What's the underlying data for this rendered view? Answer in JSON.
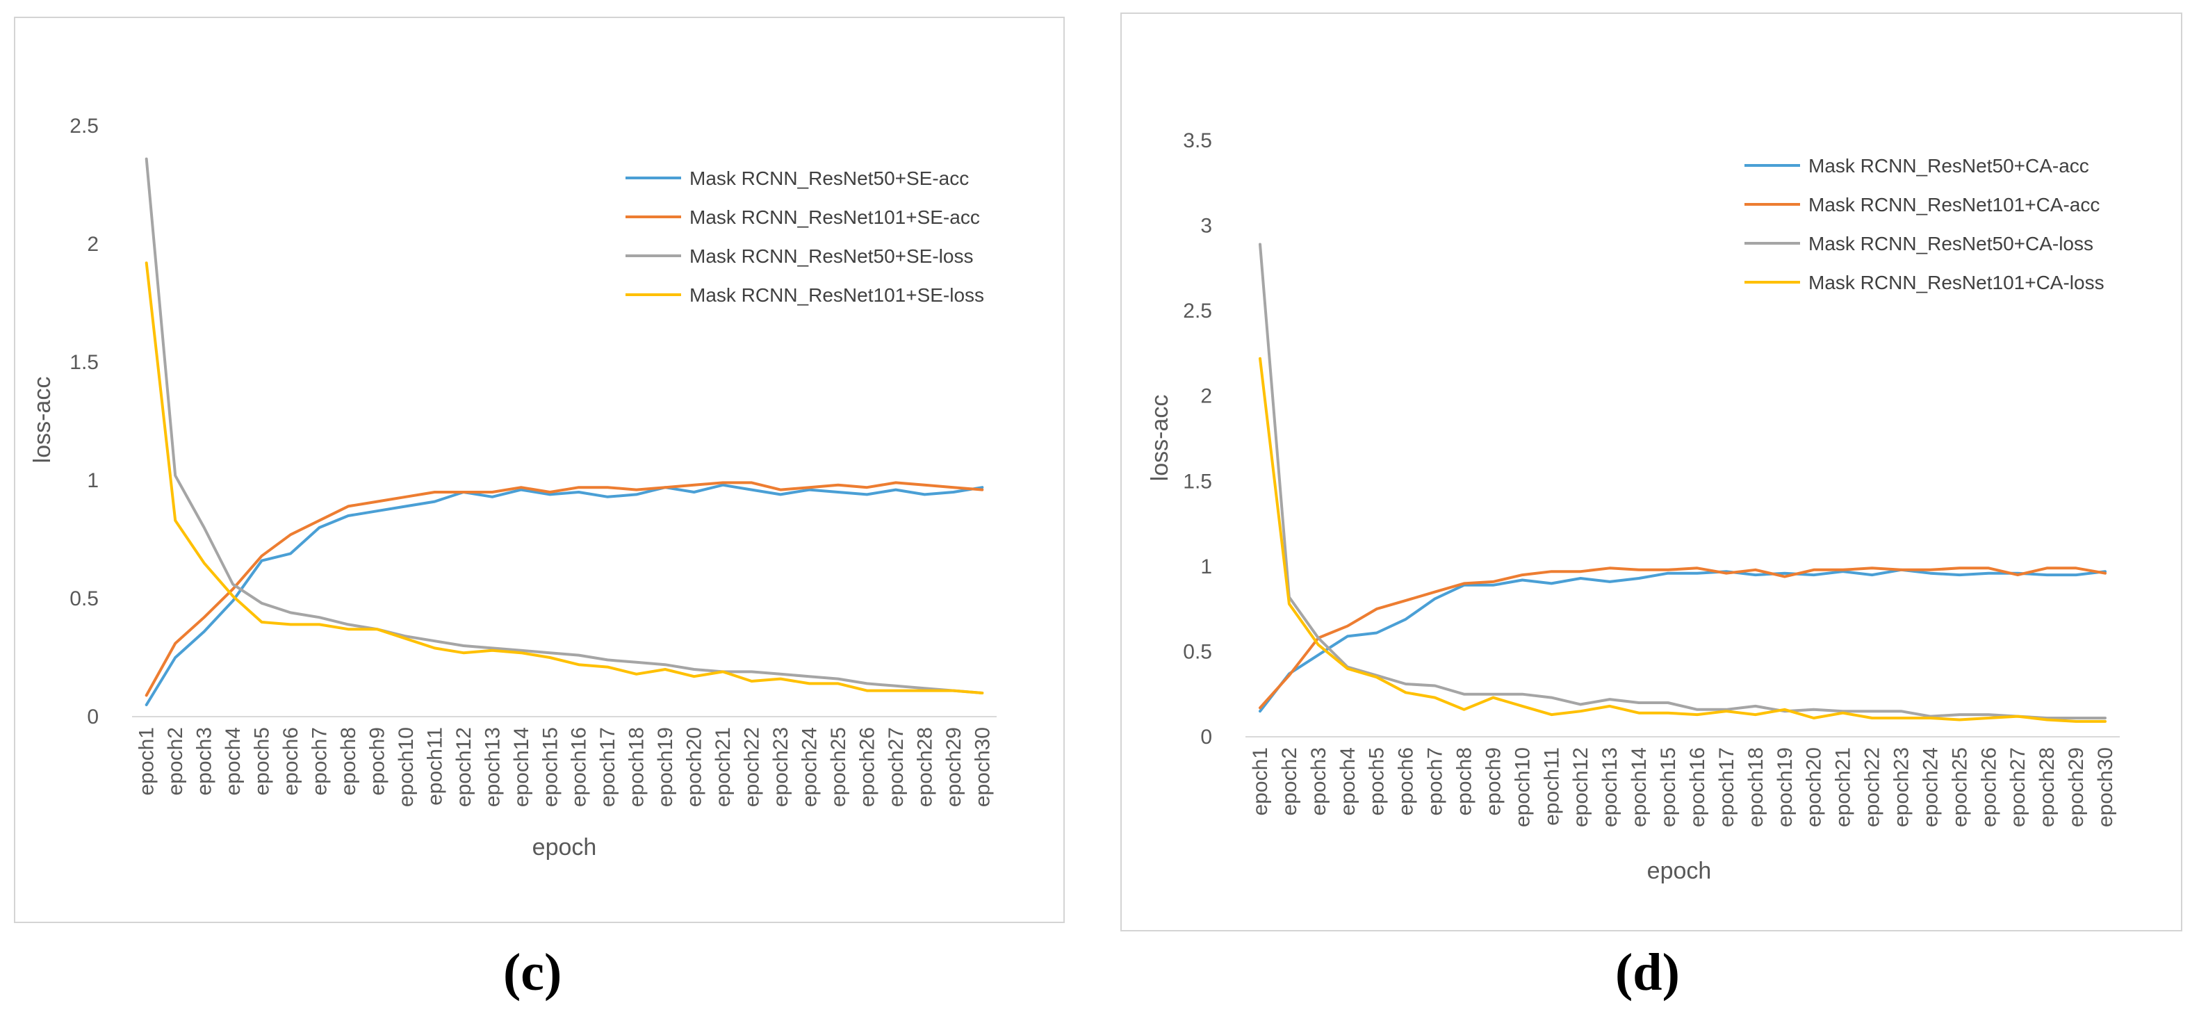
{
  "captions": {
    "c": "(c)",
    "d": "(d)"
  },
  "chart_data": [
    {
      "type": "line",
      "panel": "c",
      "title": "",
      "xlabel": "epoch",
      "ylabel": "loss-acc",
      "ylim": [
        0,
        2.5
      ],
      "yticks": [
        "0",
        "0.5",
        "1",
        "1.5",
        "2",
        "2.5"
      ],
      "ytick_values": [
        0,
        0.5,
        1,
        1.5,
        2,
        2.5
      ],
      "legend_position": "top-right",
      "grid": false,
      "categories": [
        "epoch1",
        "epoch2",
        "epoch3",
        "epoch4",
        "epoch5",
        "epoch6",
        "epoch7",
        "epoch8",
        "epoch9",
        "epoch10",
        "epoch11",
        "epoch12",
        "epoch13",
        "epoch14",
        "epoch15",
        "epoch16",
        "epoch17",
        "epoch18",
        "epoch19",
        "epoch20",
        "epoch21",
        "epoch22",
        "epoch23",
        "epoch24",
        "epoch25",
        "epoch26",
        "epoch27",
        "epoch28",
        "epoch29",
        "epoch30"
      ],
      "series": [
        {
          "name": "Mask RCNN_ResNet50+SE-acc",
          "color": "#4A9FD5",
          "values": [
            0.05,
            0.25,
            0.36,
            0.49,
            0.66,
            0.69,
            0.8,
            0.85,
            0.87,
            0.89,
            0.91,
            0.95,
            0.93,
            0.96,
            0.94,
            0.95,
            0.93,
            0.94,
            0.97,
            0.95,
            0.98,
            0.96,
            0.94,
            0.96,
            0.95,
            0.94,
            0.96,
            0.94,
            0.95,
            0.97
          ]
        },
        {
          "name": "Mask RCNN_ResNet101+SE-acc",
          "color": "#ED7D31",
          "values": [
            0.09,
            0.31,
            0.42,
            0.54,
            0.68,
            0.77,
            0.83,
            0.89,
            0.91,
            0.93,
            0.95,
            0.95,
            0.95,
            0.97,
            0.95,
            0.97,
            0.97,
            0.96,
            0.97,
            0.98,
            0.99,
            0.99,
            0.96,
            0.97,
            0.98,
            0.97,
            0.99,
            0.98,
            0.97,
            0.96
          ]
        },
        {
          "name": "Mask RCNN_ResNet50+SE-loss",
          "color": "#A5A5A5",
          "values": [
            2.36,
            1.02,
            0.8,
            0.56,
            0.48,
            0.44,
            0.42,
            0.39,
            0.37,
            0.34,
            0.32,
            0.3,
            0.29,
            0.28,
            0.27,
            0.26,
            0.24,
            0.23,
            0.22,
            0.2,
            0.19,
            0.19,
            0.18,
            0.17,
            0.16,
            0.14,
            0.13,
            0.12,
            0.11,
            0.1
          ]
        },
        {
          "name": "Mask RCNN_ResNet101+SE-loss",
          "color": "#FFC000",
          "values": [
            1.92,
            0.83,
            0.65,
            0.51,
            0.4,
            0.39,
            0.39,
            0.37,
            0.37,
            0.33,
            0.29,
            0.27,
            0.28,
            0.27,
            0.25,
            0.22,
            0.21,
            0.18,
            0.2,
            0.17,
            0.19,
            0.15,
            0.16,
            0.14,
            0.14,
            0.11,
            0.11,
            0.11,
            0.11,
            0.1
          ]
        }
      ]
    },
    {
      "type": "line",
      "panel": "d",
      "title": "",
      "xlabel": "epoch",
      "ylabel": "loss-acc",
      "ylim": [
        0,
        3.5
      ],
      "yticks": [
        "0",
        "0.5",
        "1",
        "1.5",
        "2",
        "2.5",
        "3",
        "3.5"
      ],
      "ytick_values": [
        0,
        0.5,
        1,
        1.5,
        2,
        2.5,
        3,
        3.5
      ],
      "legend_position": "top-right",
      "grid": false,
      "categories": [
        "epoch1",
        "epoch2",
        "epoch3",
        "epoch4",
        "epoch5",
        "epoch6",
        "epoch7",
        "epoch8",
        "epoch9",
        "epoch10",
        "epoch11",
        "epoch12",
        "epoch13",
        "epoch14",
        "epoch15",
        "epoch16",
        "epoch17",
        "epoch18",
        "epoch19",
        "epoch20",
        "epoch21",
        "epoch22",
        "epoch23",
        "epoch24",
        "epoch25",
        "epoch26",
        "epoch27",
        "epoch28",
        "epoch29",
        "epoch30"
      ],
      "series": [
        {
          "name": "Mask RCNN_ResNet50+CA-acc",
          "color": "#4A9FD5",
          "values": [
            0.15,
            0.37,
            0.48,
            0.59,
            0.61,
            0.69,
            0.81,
            0.89,
            0.89,
            0.92,
            0.9,
            0.93,
            0.91,
            0.93,
            0.96,
            0.96,
            0.97,
            0.95,
            0.96,
            0.95,
            0.97,
            0.95,
            0.98,
            0.96,
            0.95,
            0.96,
            0.96,
            0.95,
            0.95,
            0.97
          ]
        },
        {
          "name": "Mask RCNN_ResNet101+CA-acc",
          "color": "#ED7D31",
          "values": [
            0.17,
            0.36,
            0.58,
            0.65,
            0.75,
            0.8,
            0.85,
            0.9,
            0.91,
            0.95,
            0.97,
            0.97,
            0.99,
            0.98,
            0.98,
            0.99,
            0.96,
            0.98,
            0.94,
            0.98,
            0.98,
            0.99,
            0.98,
            0.98,
            0.99,
            0.99,
            0.95,
            0.99,
            0.99,
            0.96
          ]
        },
        {
          "name": "Mask RCNN_ResNet50+CA-loss",
          "color": "#A5A5A5",
          "values": [
            2.89,
            0.82,
            0.58,
            0.41,
            0.36,
            0.31,
            0.3,
            0.25,
            0.25,
            0.25,
            0.23,
            0.19,
            0.22,
            0.2,
            0.2,
            0.16,
            0.16,
            0.18,
            0.15,
            0.16,
            0.15,
            0.15,
            0.15,
            0.12,
            0.13,
            0.13,
            0.12,
            0.11,
            0.11,
            0.11
          ]
        },
        {
          "name": "Mask RCNN_ResNet101+CA-loss",
          "color": "#FFC000",
          "values": [
            2.22,
            0.78,
            0.54,
            0.4,
            0.35,
            0.26,
            0.23,
            0.16,
            0.23,
            0.18,
            0.13,
            0.15,
            0.18,
            0.14,
            0.14,
            0.13,
            0.15,
            0.13,
            0.16,
            0.11,
            0.14,
            0.11,
            0.11,
            0.11,
            0.1,
            0.11,
            0.12,
            0.1,
            0.09,
            0.09
          ]
        }
      ]
    }
  ]
}
